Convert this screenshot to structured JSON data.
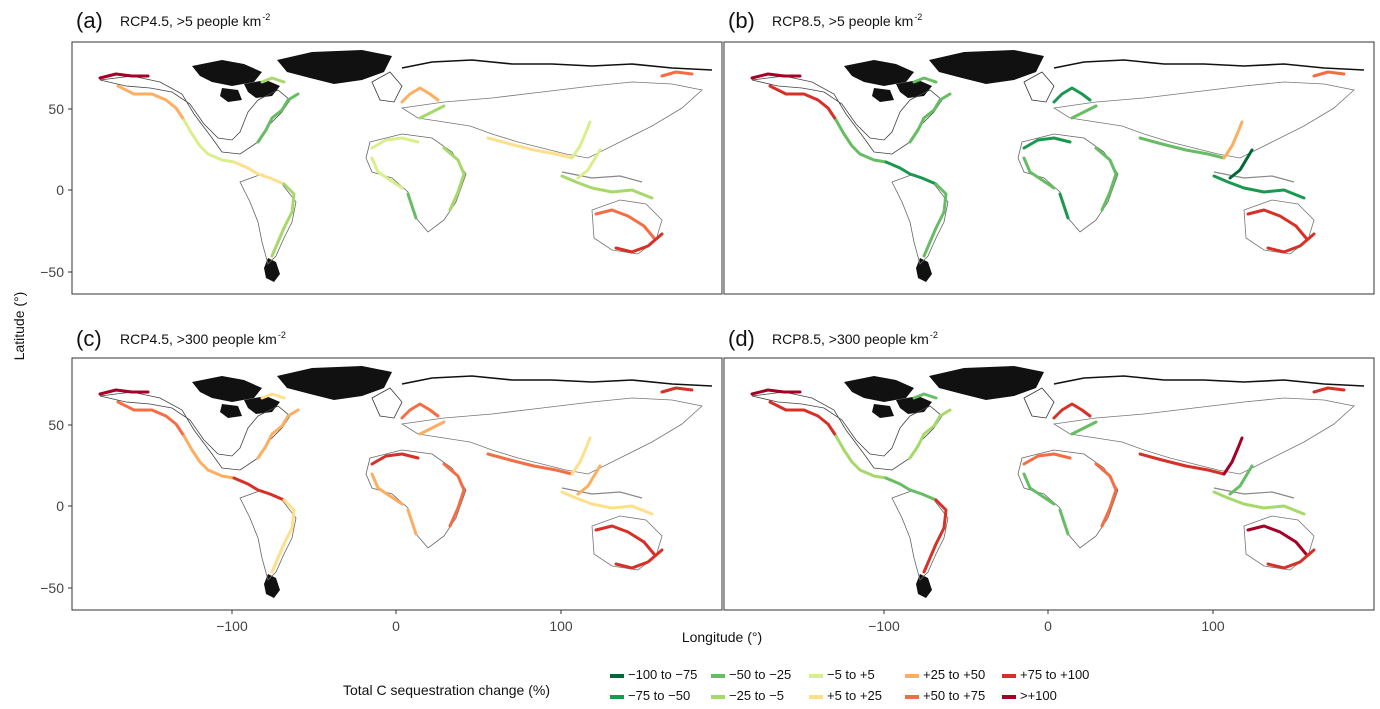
{
  "panels": [
    {
      "id": "a",
      "tag": "(a)",
      "scenario": "RCP4.5, >5 people km",
      "sup": "-2"
    },
    {
      "id": "b",
      "tag": "(b)",
      "scenario": "RCP8.5, >5 people km",
      "sup": "-2"
    },
    {
      "id": "c",
      "tag": "(c)",
      "scenario": "RCP4.5, >300 people km",
      "sup": "-2"
    },
    {
      "id": "d",
      "tag": "(d)",
      "scenario": "RCP8.5, >300 people km",
      "sup": "-2"
    }
  ],
  "axes": {
    "ylabel": "Latitude (°)",
    "xlabel": "Longitude (°)",
    "yticks": [
      "50",
      "0",
      "−50"
    ],
    "xticks": [
      "−100",
      "0",
      "100"
    ]
  },
  "legend": {
    "title": "Total C sequestration change (%)",
    "items": [
      {
        "label": "−100 to −75",
        "color": "#006837"
      },
      {
        "label": "−75 to −50",
        "color": "#1a9850"
      },
      {
        "label": "−50 to −25",
        "color": "#66bd63"
      },
      {
        "label": "−25 to −5",
        "color": "#a6d96a"
      },
      {
        "label": "−5 to +5",
        "color": "#d9ef8b"
      },
      {
        "label": "+5 to +25",
        "color": "#fee08b"
      },
      {
        "label": "+25 to +50",
        "color": "#fdae61"
      },
      {
        "label": "+50 to +75",
        "color": "#f46d43"
      },
      {
        "label": "+75 to +100",
        "color": "#d73027"
      },
      {
        "label": ">+100",
        "color": "#a50026"
      }
    ]
  }
}
